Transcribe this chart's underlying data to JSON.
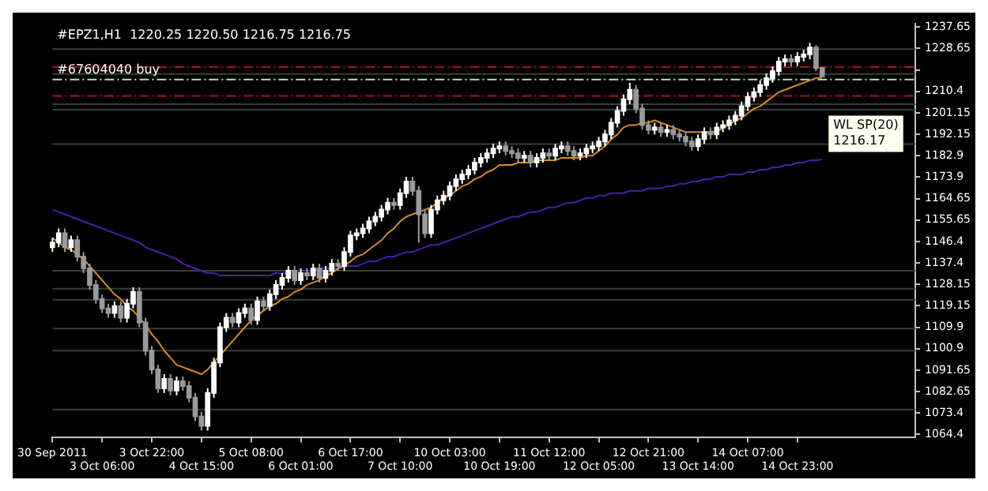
{
  "chart_data": {
    "type": "candlestick",
    "title": "#EPZ1,H1  1220.25 1220.50 1216.75 1216.75",
    "colors": [
      "#ffffff",
      "#ffffff",
      "#9a9a9a",
      "#ffffff",
      "#9a9a9a",
      "#9a9a9a",
      "#9a9a9a",
      "#9a9a9a",
      "#9a9a9a",
      "#9a9a9a",
      "#ffffff",
      "#9a9a9a",
      "#ffffff",
      "#ffffff",
      "#9a9a9a",
      "#9a9a9a",
      "#9a9a9a",
      "#9a9a9a",
      "#ffffff",
      "#9a9a9a",
      "#ffffff",
      "#9a9a9a",
      "#9a9a9a",
      "#9a9a9a",
      "#9a9a9a",
      "#ffffff",
      "#ffffff",
      "#ffffff",
      "#ffffff",
      "#9a9a9a",
      "#ffffff",
      "#ffffff",
      "#9a9a9a",
      "#ffffff",
      "#9a9a9a",
      "#ffffff",
      "#ffffff",
      "#ffffff",
      "#ffffff",
      "#9a9a9a",
      "#ffffff",
      "#9a9a9a",
      "#ffffff",
      "#9a9a9a",
      "#ffffff",
      "#ffffff",
      "#9a9a9a",
      "#ffffff",
      "#ffffff",
      "#ffffff",
      "#ffffff",
      "#ffffff",
      "#ffffff",
      "#ffffff",
      "#ffffff",
      "#9a9a9a",
      "#ffffff",
      "#ffffff",
      "#9a9a9a",
      "#9a9a9a",
      "#9a9a9a",
      "#ffffff",
      "#ffffff",
      "#ffffff",
      "#ffffff",
      "#ffffff",
      "#ffffff",
      "#ffffff",
      "#ffffff",
      "#ffffff",
      "#ffffff",
      "#ffffff",
      "#ffffff",
      "#9a9a9a",
      "#9a9a9a",
      "#9a9a9a",
      "#ffffff",
      "#9a9a9a",
      "#ffffff",
      "#ffffff",
      "#9a9a9a",
      "#ffffff",
      "#ffffff",
      "#9a9a9a",
      "#9a9a9a",
      "#ffffff",
      "#ffffff",
      "#ffffff",
      "#ffffff",
      "#ffffff",
      "#ffffff",
      "#ffffff",
      "#ffffff",
      "#ffffff",
      "#9a9a9a",
      "#9a9a9a",
      "#9a9a9a",
      "#ffffff",
      "#9a9a9a",
      "#ffffff",
      "#9a9a9a",
      "#9a9a9a",
      "#9a9a9a",
      "#9a9a9a",
      "#ffffff",
      "#ffffff",
      "#9a9a9a",
      "#ffffff",
      "#ffffff",
      "#ffffff",
      "#ffffff",
      "#ffffff",
      "#ffffff",
      "#ffffff",
      "#ffffff",
      "#ffffff",
      "#ffffff",
      "#ffffff",
      "#ffffff",
      "#9a9a9a",
      "#ffffff",
      "#ffffff",
      "#ffffff",
      "#9a9a9a",
      "#9a9a9a",
      null,
      null,
      null,
      null,
      null,
      null,
      null,
      null,
      null,
      null,
      null,
      null,
      null,
      null,
      null
    ],
    "categories": [
      "30 Sep 2011",
      null,
      null,
      null,
      null,
      null,
      null,
      null,
      "3 Oct 06:00",
      null,
      null,
      null,
      null,
      null,
      null,
      null,
      "3 Oct 22:00",
      null,
      null,
      null,
      null,
      null,
      null,
      null,
      "4 Oct 15:00",
      null,
      null,
      null,
      null,
      null,
      null,
      null,
      "5 Oct 08:00",
      null,
      null,
      null,
      null,
      null,
      null,
      null,
      "6 Oct 01:00",
      null,
      null,
      null,
      null,
      null,
      null,
      null,
      "6 Oct 17:00",
      null,
      null,
      null,
      null,
      null,
      null,
      null,
      "7 Oct 10:00",
      null,
      null,
      null,
      null,
      null,
      null,
      null,
      "10 Oct 03:00",
      null,
      null,
      null,
      null,
      null,
      null,
      null,
      "10 Oct 19:00",
      null,
      null,
      null,
      null,
      null,
      null,
      null,
      "11 Oct 12:00",
      null,
      null,
      null,
      null,
      null,
      null,
      null,
      "12 Oct 05:00",
      null,
      null,
      null,
      null,
      null,
      null,
      null,
      "12 Oct 21:00",
      null,
      null,
      null,
      null,
      null,
      null,
      null,
      "13 Oct 14:00",
      null,
      null,
      null,
      null,
      null,
      null,
      null,
      "14 Oct 07:00",
      null,
      null,
      null,
      null,
      null,
      null,
      null,
      "14 Oct 23:00",
      null,
      null,
      null,
      null,
      null,
      null,
      null,
      null,
      null,
      null,
      null,
      null,
      null,
      null,
      null,
      null,
      null,
      null,
      null
    ],
    "ohlc": [
      [
        1144,
        1148,
        1142,
        1146
      ],
      [
        1146,
        1152,
        1144,
        1150
      ],
      [
        1150,
        1152,
        1142,
        1144
      ],
      [
        1144,
        1149,
        1142,
        1147
      ],
      [
        1147,
        1149,
        1138,
        1140
      ],
      [
        1140,
        1142,
        1133,
        1135
      ],
      [
        1135,
        1137,
        1126,
        1128
      ],
      [
        1128,
        1130,
        1120,
        1122
      ],
      [
        1122,
        1124,
        1116,
        1118
      ],
      [
        1118,
        1120,
        1114,
        1116
      ],
      [
        1116,
        1121,
        1114,
        1119
      ],
      [
        1119,
        1121,
        1112,
        1114
      ],
      [
        1114,
        1122,
        1112,
        1120
      ],
      [
        1120,
        1127,
        1118,
        1125
      ],
      [
        1125,
        1127,
        1110,
        1112
      ],
      [
        1112,
        1114,
        1098,
        1100
      ],
      [
        1100,
        1102,
        1090,
        1092
      ],
      [
        1092,
        1094,
        1082,
        1084
      ],
      [
        1084,
        1090,
        1082,
        1088
      ],
      [
        1088,
        1090,
        1081,
        1083
      ],
      [
        1083,
        1089,
        1081,
        1087
      ],
      [
        1087,
        1089,
        1083,
        1085
      ],
      [
        1085,
        1087,
        1078,
        1080
      ],
      [
        1080,
        1082,
        1070,
        1072
      ],
      [
        1072,
        1074,
        1066,
        1068
      ],
      [
        1068,
        1084,
        1066,
        1082
      ],
      [
        1082,
        1097,
        1080,
        1095
      ],
      [
        1095,
        1112,
        1093,
        1110
      ],
      [
        1110,
        1116,
        1108,
        1114
      ],
      [
        1114,
        1116,
        1110,
        1112
      ],
      [
        1112,
        1118,
        1110,
        1116
      ],
      [
        1116,
        1120,
        1114,
        1118
      ],
      [
        1118,
        1120,
        1111,
        1113
      ],
      [
        1113,
        1123,
        1111,
        1121
      ],
      [
        1121,
        1123,
        1117,
        1119
      ],
      [
        1119,
        1126,
        1117,
        1124
      ],
      [
        1124,
        1130,
        1122,
        1128
      ],
      [
        1128,
        1133,
        1126,
        1131
      ],
      [
        1131,
        1136,
        1129,
        1134
      ],
      [
        1134,
        1136,
        1128,
        1130
      ],
      [
        1130,
        1135,
        1128,
        1133
      ],
      [
        1133,
        1135,
        1130,
        1132
      ],
      [
        1132,
        1137,
        1130,
        1135
      ],
      [
        1135,
        1137,
        1129,
        1131
      ],
      [
        1131,
        1136,
        1129,
        1134
      ],
      [
        1134,
        1139,
        1132,
        1137
      ],
      [
        1137,
        1139,
        1134,
        1136
      ],
      [
        1136,
        1144,
        1134,
        1142
      ],
      [
        1142,
        1151,
        1140,
        1149
      ],
      [
        1149,
        1152,
        1147,
        1150
      ],
      [
        1150,
        1154,
        1148,
        1152
      ],
      [
        1152,
        1157,
        1150,
        1155
      ],
      [
        1155,
        1159,
        1153,
        1157
      ],
      [
        1157,
        1162,
        1155,
        1160
      ],
      [
        1160,
        1165,
        1158,
        1163
      ],
      [
        1163,
        1165,
        1160,
        1162
      ],
      [
        1162,
        1169,
        1160,
        1167
      ],
      [
        1167,
        1174,
        1165,
        1172
      ],
      [
        1172,
        1174,
        1166,
        1168
      ],
      [
        1168,
        1170,
        1146,
        1158
      ],
      [
        1158,
        1160,
        1148,
        1150
      ],
      [
        1150,
        1162,
        1148,
        1160
      ],
      [
        1160,
        1166,
        1158,
        1164
      ],
      [
        1164,
        1168,
        1162,
        1166
      ],
      [
        1166,
        1172,
        1164,
        1170
      ],
      [
        1170,
        1175,
        1168,
        1173
      ],
      [
        1173,
        1177,
        1171,
        1175
      ],
      [
        1175,
        1179,
        1173,
        1177
      ],
      [
        1177,
        1182,
        1175,
        1180
      ],
      [
        1180,
        1184,
        1178,
        1182
      ],
      [
        1182,
        1186,
        1180,
        1184
      ],
      [
        1184,
        1188,
        1182,
        1186
      ],
      [
        1186,
        1189,
        1184,
        1187
      ],
      [
        1187,
        1189,
        1183,
        1185
      ],
      [
        1185,
        1187,
        1182,
        1184
      ],
      [
        1184,
        1186,
        1180,
        1182
      ],
      [
        1182,
        1185,
        1180,
        1183
      ],
      [
        1183,
        1185,
        1178,
        1180
      ],
      [
        1180,
        1184,
        1178,
        1182
      ],
      [
        1182,
        1186,
        1180,
        1184
      ],
      [
        1184,
        1186,
        1181,
        1183
      ],
      [
        1183,
        1188,
        1181,
        1186
      ],
      [
        1186,
        1189,
        1184,
        1187
      ],
      [
        1187,
        1189,
        1183,
        1185
      ],
      [
        1185,
        1187,
        1181,
        1183
      ],
      [
        1183,
        1186,
        1181,
        1184
      ],
      [
        1184,
        1188,
        1182,
        1186
      ],
      [
        1186,
        1189,
        1184,
        1187
      ],
      [
        1187,
        1191,
        1185,
        1189
      ],
      [
        1189,
        1194,
        1187,
        1192
      ],
      [
        1192,
        1199,
        1190,
        1197
      ],
      [
        1197,
        1204,
        1195,
        1202
      ],
      [
        1202,
        1209,
        1200,
        1207
      ],
      [
        1207,
        1214,
        1205,
        1211
      ],
      [
        1211,
        1213,
        1201,
        1203
      ],
      [
        1203,
        1205,
        1194,
        1196
      ],
      [
        1196,
        1198,
        1192,
        1194
      ],
      [
        1194,
        1197,
        1192,
        1195
      ],
      [
        1195,
        1197,
        1191,
        1193
      ],
      [
        1193,
        1196,
        1191,
        1194
      ],
      [
        1194,
        1196,
        1190,
        1192
      ],
      [
        1192,
        1194,
        1189,
        1191
      ],
      [
        1191,
        1193,
        1187,
        1189
      ],
      [
        1189,
        1191,
        1185,
        1187
      ],
      [
        1187,
        1192,
        1185,
        1190
      ],
      [
        1190,
        1195,
        1188,
        1193
      ],
      [
        1193,
        1195,
        1190,
        1192
      ],
      [
        1192,
        1197,
        1190,
        1195
      ],
      [
        1195,
        1198,
        1193,
        1196
      ],
      [
        1196,
        1200,
        1194,
        1198
      ],
      [
        1198,
        1202,
        1196,
        1200
      ],
      [
        1200,
        1206,
        1198,
        1204
      ],
      [
        1204,
        1210,
        1202,
        1208
      ],
      [
        1208,
        1212,
        1206,
        1210
      ],
      [
        1210,
        1215,
        1208,
        1213
      ],
      [
        1213,
        1218,
        1211,
        1216
      ],
      [
        1216,
        1221,
        1214,
        1219
      ],
      [
        1219,
        1225,
        1217,
        1223
      ],
      [
        1223,
        1226,
        1221,
        1224
      ],
      [
        1224,
        1226,
        1221,
        1223
      ],
      [
        1223,
        1227,
        1221,
        1225
      ],
      [
        1225,
        1228,
        1223,
        1226
      ],
      [
        1226,
        1231,
        1224,
        1229
      ],
      [
        1229,
        1230,
        1219,
        1220.25
      ],
      [
        1220.25,
        1220.5,
        1216.75,
        1216.75
      ],
      null,
      null,
      null,
      null,
      null,
      null,
      null,
      null,
      null,
      null,
      null,
      null,
      null,
      null,
      null
    ],
    "series": [
      {
        "type": "line",
        "color": "#d98c1a",
        "values": [
          1148,
          1146,
          1144,
          1143,
          1141,
          1139,
          1136,
          1133,
          1130,
          1127,
          1124,
          1122,
          1119,
          1117,
          1114,
          1111,
          1107,
          1104,
          1100,
          1097,
          1094,
          1093,
          1092,
          1091,
          1090,
          1092,
          1095,
          1098,
          1101,
          1104,
          1107,
          1110,
          1113,
          1115,
          1117,
          1119,
          1120,
          1122,
          1123,
          1125,
          1126,
          1128,
          1129,
          1130,
          1132,
          1133,
          1135,
          1136,
          1138,
          1140,
          1141,
          1143,
          1145,
          1147,
          1150,
          1152,
          1155,
          1157,
          1158,
          1159,
          1160,
          1161,
          1163,
          1165,
          1166,
          1168,
          1170,
          1171,
          1173,
          1174,
          1176,
          1177,
          1179,
          1179,
          1179,
          1180,
          1180,
          1180,
          1181,
          1181,
          1181,
          1181,
          1182,
          1182,
          1182,
          1182,
          1183,
          1183,
          1185,
          1187,
          1190,
          1192,
          1195,
          1196,
          1196,
          1197,
          1197,
          1198,
          1197,
          1196,
          1195,
          1194,
          1193,
          1193,
          1193,
          1193,
          1193,
          1193,
          1195,
          1196,
          1198,
          1199,
          1201,
          1203,
          1204,
          1206,
          1208,
          1210,
          1211,
          1212,
          1213,
          1214,
          1215,
          1216,
          1216.2,
          null,
          null,
          null,
          null,
          null,
          null,
          null,
          null,
          null,
          null,
          null,
          null,
          null,
          null,
          null
        ]
      },
      {
        "type": "line",
        "color": "#4b1fa8",
        "values": [
          1160,
          1159,
          1158,
          1157,
          1156,
          1155,
          1154,
          1153,
          1152,
          1151,
          1150,
          1149,
          1148,
          1147,
          1146,
          1144,
          1143,
          1142,
          1141,
          1140,
          1139,
          1137,
          1136,
          1135,
          1134,
          1133,
          1133,
          1132,
          1132,
          1132,
          1132,
          1132,
          1132,
          1132,
          1132,
          1132,
          1133,
          1133,
          1133,
          1133,
          1134,
          1134,
          1134,
          1135,
          1135,
          1135,
          1135,
          1136,
          1136,
          1136,
          1137,
          1138,
          1138,
          1139,
          1140,
          1140,
          1141,
          1142,
          1142,
          1143,
          1144,
          1145,
          1145,
          1146,
          1147,
          1148,
          1149,
          1150,
          1151,
          1152,
          1153,
          1154,
          1155,
          1156,
          1157,
          1157,
          1158,
          1159,
          1159,
          1160,
          1161,
          1161,
          1162,
          1163,
          1163,
          1164,
          1165,
          1165,
          1166,
          1166,
          1167,
          1167,
          1167,
          1168,
          1168,
          1168,
          1169,
          1169,
          1169,
          1170,
          1170,
          1171,
          1171,
          1172,
          1172,
          1173,
          1173,
          1174,
          1174,
          1175,
          1175,
          1175,
          1176,
          1176,
          1177,
          1177,
          1178,
          1178,
          1179,
          1179,
          1180,
          1180,
          1181,
          1181,
          1181.4,
          null,
          null,
          null,
          null,
          null,
          null,
          null,
          null,
          null,
          null,
          null,
          null,
          null,
          null,
          null
        ]
      }
    ],
    "ylim": [
      1063,
      1239
    ],
    "yticks": [
      1064.4,
      1073.4,
      1082.65,
      1091.65,
      1100.9,
      1109.9,
      1119.15,
      1128.15,
      1137.4,
      1146.4,
      1155.65,
      1164.65,
      1173.9,
      1182.9,
      1192.15,
      1201.15,
      1210.4,
      {
        "value": 1219.4,
        "label": null
      },
      1228.65,
      1237.65
    ],
    "ref_lines": [
      {
        "axis": "y",
        "value": 1228.3,
        "color": "#3c3c3c",
        "line_style": "solid"
      },
      {
        "axis": "y",
        "value": 1220.7,
        "color": "#b01010",
        "line_style": "dashed"
      },
      {
        "axis": "y",
        "value": 1217.7,
        "color": "#3c3c3c",
        "line_style": "solid"
      },
      {
        "axis": "y",
        "value": 1215.4,
        "color": "#b8e0b8",
        "line_style": "dashed"
      },
      {
        "axis": "y",
        "value": 1208.4,
        "color": "#b01010",
        "line_style": "dashed"
      },
      {
        "axis": "y",
        "value": 1204.9,
        "color": "#3c3c3c",
        "line_style": "solid"
      },
      {
        "axis": "y",
        "value": 1202.5,
        "color": "#3c3c3c",
        "line_style": "solid"
      },
      {
        "axis": "y",
        "value": 1187.9,
        "color": "#3c3c3c",
        "line_style": "solid"
      },
      {
        "axis": "y",
        "value": 1134,
        "color": "#3c3c3c",
        "line_style": "solid"
      },
      {
        "axis": "y",
        "value": 1126.4,
        "color": "#3c3c3c",
        "line_style": "solid"
      },
      {
        "axis": "y",
        "value": 1121.7,
        "color": "#3c3c3c",
        "line_style": "solid"
      },
      {
        "axis": "y",
        "value": 1109.4,
        "color": "#3c3c3c",
        "line_style": "solid"
      },
      {
        "axis": "y",
        "value": 1100,
        "color": "#3c3c3c",
        "line_style": "solid"
      },
      {
        "axis": "y",
        "value": 1075,
        "color": "#3c3c3c",
        "line_style": "solid"
      }
    ],
    "annotations": [
      "#67604040 buy",
      "WL SP(20)",
      "1216.17"
    ]
  }
}
